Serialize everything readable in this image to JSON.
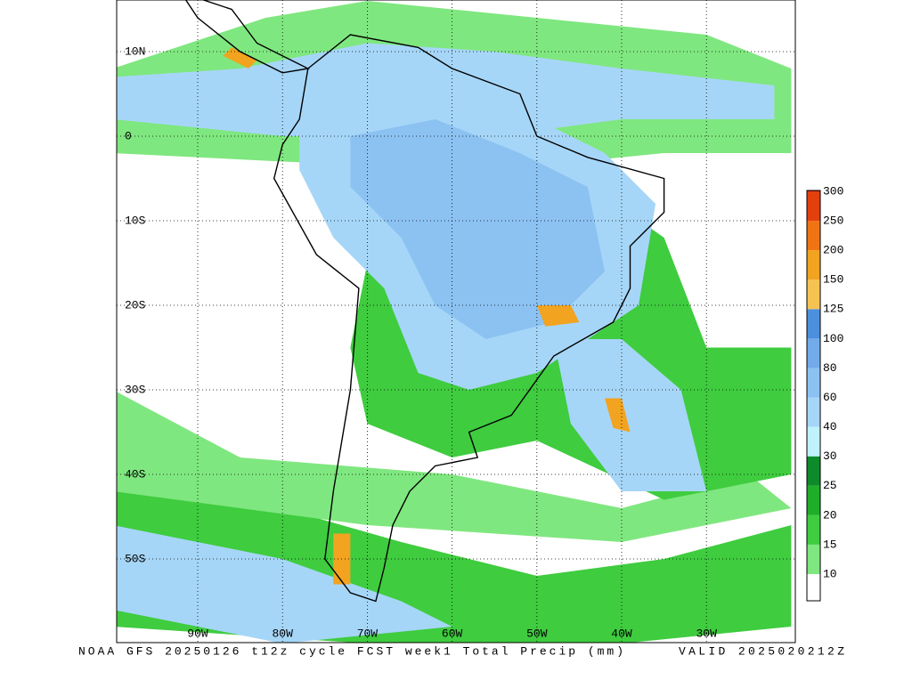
{
  "map": {
    "lat_labels": [
      "10N",
      "0",
      "10S",
      "20S",
      "30S",
      "40S",
      "50S"
    ],
    "lon_labels": [
      "90W",
      "80W",
      "70W",
      "60W",
      "50W",
      "40W",
      "30W"
    ]
  },
  "colorbar": {
    "labels": [
      10,
      15,
      20,
      25,
      30,
      40,
      60,
      80,
      100,
      125,
      150,
      200,
      250,
      300
    ],
    "colors": [
      "#ffffff",
      "#7fe77f",
      "#3fcc3f",
      "#1fae2a",
      "#0d8a2a",
      "#bff2fa",
      "#a6d6f7",
      "#8cc2f2",
      "#72abe9",
      "#4b8fde",
      "#f6c352",
      "#f2a31f",
      "#ef7413",
      "#e3400e",
      "#b81414"
    ]
  },
  "footer": {
    "caption": "NOAA GFS 20250126 t12z cycle FCST week1 Total Precip (mm)",
    "valid": "VALID 2025020212Z"
  }
}
